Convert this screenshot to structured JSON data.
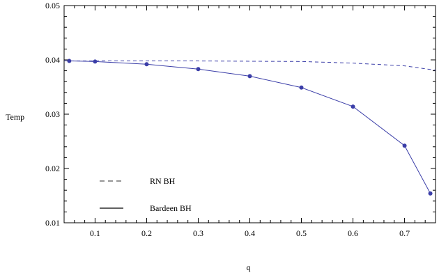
{
  "chart_data": {
    "type": "line",
    "title": "",
    "xlabel": "q",
    "ylabel": "Temp",
    "xlim": [
      0.04,
      0.76
    ],
    "ylim": [
      0.01,
      0.05
    ],
    "grid": false,
    "legend_position": "bottom-left",
    "xticks": [
      0.1,
      0.2,
      0.3,
      0.4,
      0.5,
      0.6,
      0.7
    ],
    "xtick_labels": [
      "0.1",
      "0.2",
      "0.3",
      "0.4",
      "0.5",
      "0.6",
      "0.7"
    ],
    "yticks": [
      0.01,
      0.02,
      0.03,
      0.04,
      0.05
    ],
    "ytick_labels": [
      "0.01",
      "0.02",
      "0.03",
      "0.04",
      "0.05"
    ],
    "series": [
      {
        "name": "RN BH",
        "style": "dashed",
        "color": "#3b3ea8",
        "x": [
          0.04,
          0.1,
          0.2,
          0.3,
          0.4,
          0.5,
          0.6,
          0.7,
          0.76
        ],
        "y": [
          0.0398,
          0.0398,
          0.0398,
          0.0398,
          0.03975,
          0.0397,
          0.0394,
          0.0389,
          0.0381
        ]
      },
      {
        "name": "Bardeen BH",
        "style": "solid",
        "color": "#3b3ea8",
        "markers": true,
        "x": [
          0.05,
          0.1,
          0.2,
          0.3,
          0.4,
          0.5,
          0.6,
          0.7,
          0.75
        ],
        "y": [
          0.0398,
          0.0397,
          0.0392,
          0.0383,
          0.037,
          0.0349,
          0.0314,
          0.0242,
          0.0154
        ]
      }
    ],
    "legend": [
      {
        "label": "RN BH",
        "style": "dashed"
      },
      {
        "label": "Bardeen BH",
        "style": "solid"
      }
    ],
    "colors": {
      "axis": "#000000",
      "series": "#3b3ea8",
      "legend_line": "#2c2c2c"
    }
  }
}
